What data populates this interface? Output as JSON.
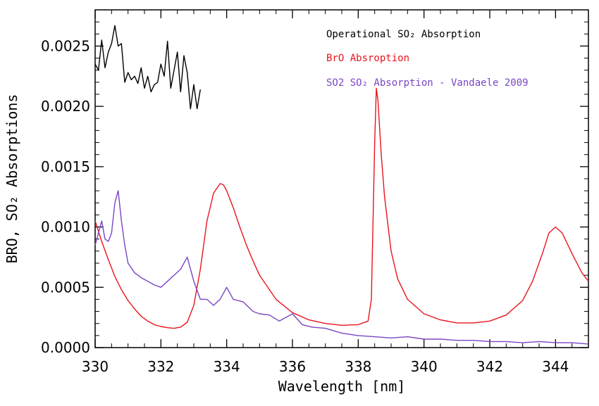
{
  "chart_data": {
    "type": "line",
    "title": "",
    "xlabel": "Wavelength [nm]",
    "ylabel": "BRO, SO₂ Absorptions",
    "xlim": [
      330,
      345
    ],
    "ylim": [
      0,
      0.0028
    ],
    "x_ticks": [
      330,
      332,
      334,
      336,
      338,
      340,
      342,
      344
    ],
    "x_tick_labels": [
      "330",
      "332",
      "334",
      "336",
      "338",
      "340",
      "342",
      "344"
    ],
    "y_ticks": [
      0,
      0.0005,
      0.001,
      0.0015,
      0.002,
      0.0025
    ],
    "y_tick_labels": [
      "0.0000",
      "0.0005",
      "0.0010",
      "0.0015",
      "0.0020",
      "0.0025"
    ],
    "grid": false,
    "legend_position": "top-right",
    "series": [
      {
        "name": "Operational SO₂ Absorption",
        "color": "#000000",
        "x": [
          330.0,
          330.1,
          330.2,
          330.3,
          330.4,
          330.5,
          330.6,
          330.7,
          330.8,
          330.9,
          331.0,
          331.1,
          331.2,
          331.3,
          331.4,
          331.5,
          331.6,
          331.7,
          331.8,
          331.9,
          332.0,
          332.1,
          332.2,
          332.3,
          332.4,
          332.5,
          332.6,
          332.7,
          332.8,
          332.9,
          333.0,
          333.1,
          333.2
        ],
        "y": [
          0.00235,
          0.0023,
          0.00255,
          0.00232,
          0.00245,
          0.00252,
          0.00267,
          0.0025,
          0.00252,
          0.0022,
          0.00228,
          0.00222,
          0.00225,
          0.00219,
          0.00232,
          0.00215,
          0.00225,
          0.00212,
          0.00218,
          0.0022,
          0.00235,
          0.00225,
          0.00254,
          0.00215,
          0.0023,
          0.00245,
          0.00212,
          0.00242,
          0.00228,
          0.00198,
          0.00218,
          0.00198,
          0.00214
        ]
      },
      {
        "name": "BrO Absroption",
        "color": "#e8141e",
        "x": [
          330.0,
          330.2,
          330.4,
          330.6,
          330.8,
          331.0,
          331.2,
          331.4,
          331.6,
          331.8,
          332.0,
          332.2,
          332.4,
          332.6,
          332.8,
          333.0,
          333.2,
          333.4,
          333.6,
          333.8,
          333.9,
          334.0,
          334.2,
          334.4,
          334.6,
          334.8,
          335.0,
          335.5,
          336.0,
          336.5,
          337.0,
          337.5,
          338.0,
          338.3,
          338.4,
          338.5,
          338.55,
          338.6,
          338.7,
          338.8,
          339.0,
          339.2,
          339.5,
          340.0,
          340.5,
          341.0,
          341.5,
          342.0,
          342.5,
          343.0,
          343.3,
          343.6,
          343.8,
          344.0,
          344.2,
          344.5,
          344.8,
          345.0
        ],
        "y": [
          0.00105,
          0.00088,
          0.00073,
          0.00059,
          0.00048,
          0.00039,
          0.00032,
          0.00026,
          0.00022,
          0.00019,
          0.000175,
          0.000165,
          0.00016,
          0.00017,
          0.00021,
          0.00035,
          0.00065,
          0.00105,
          0.00128,
          0.00136,
          0.00135,
          0.0013,
          0.00116,
          0.001,
          0.00085,
          0.00072,
          0.0006,
          0.0004,
          0.00029,
          0.00023,
          0.0002,
          0.000185,
          0.00019,
          0.00022,
          0.0004,
          0.0017,
          0.00215,
          0.00205,
          0.0016,
          0.00125,
          0.0008,
          0.00057,
          0.0004,
          0.00028,
          0.00023,
          0.000205,
          0.000205,
          0.00022,
          0.00027,
          0.00039,
          0.00055,
          0.00078,
          0.00095,
          0.001,
          0.00095,
          0.00078,
          0.00062,
          0.00055
        ]
      },
      {
        "name": "SO2 SO₂ Absorption - Vandaele 2009",
        "color": "#7a45c4",
        "x": [
          330.0,
          330.1,
          330.2,
          330.3,
          330.4,
          330.5,
          330.6,
          330.7,
          330.8,
          330.9,
          331.0,
          331.2,
          331.4,
          331.6,
          331.8,
          332.0,
          332.2,
          332.4,
          332.6,
          332.8,
          333.0,
          333.2,
          333.4,
          333.6,
          333.8,
          334.0,
          334.2,
          334.5,
          334.8,
          335.0,
          335.3,
          335.6,
          336.0,
          336.3,
          336.6,
          337.0,
          337.5,
          338.0,
          338.5,
          339.0,
          339.5,
          340.0,
          340.5,
          341.0,
          341.5,
          342.0,
          342.5,
          343.0,
          343.5,
          344.0,
          344.5,
          345.0
        ],
        "y": [
          0.00085,
          0.00095,
          0.00105,
          0.0009,
          0.00088,
          0.00095,
          0.0012,
          0.0013,
          0.00105,
          0.00085,
          0.0007,
          0.00062,
          0.00058,
          0.00055,
          0.00052,
          0.0005,
          0.00055,
          0.0006,
          0.00065,
          0.00075,
          0.00055,
          0.0004,
          0.0004,
          0.00035,
          0.0004,
          0.0005,
          0.0004,
          0.00038,
          0.0003,
          0.00028,
          0.00027,
          0.00022,
          0.00028,
          0.00019,
          0.00017,
          0.00016,
          0.00012,
          0.0001,
          9e-05,
          8e-05,
          9e-05,
          7e-05,
          7e-05,
          6e-05,
          6e-05,
          5e-05,
          5e-05,
          4e-05,
          5e-05,
          4e-05,
          4e-05,
          3e-05
        ]
      }
    ]
  }
}
